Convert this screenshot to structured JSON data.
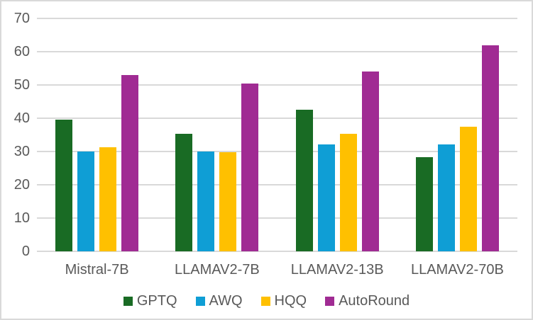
{
  "chart_data": {
    "type": "bar",
    "title": "",
    "xlabel": "",
    "ylabel": "",
    "categories": [
      "Mistral-7B",
      "LLAMAV2-7B",
      "LLAMAV2-13B",
      "LLAMAV2-70B"
    ],
    "series": [
      {
        "name": "GPTQ",
        "color": "#196B24",
        "values": [
          39.5,
          35.3,
          42.5,
          28.4
        ]
      },
      {
        "name": "AWQ",
        "color": "#0F9ED5",
        "values": [
          30.1,
          30.0,
          32.1,
          32.2
        ]
      },
      {
        "name": "HQQ",
        "color": "#FFC000",
        "values": [
          31.2,
          29.8,
          35.3,
          37.5
        ]
      },
      {
        "name": "AutoRound",
        "color": "#A02B93",
        "values": [
          52.9,
          50.4,
          54.1,
          61.9
        ]
      }
    ],
    "ylim": [
      0,
      70
    ],
    "ytick_step": 10,
    "ytick_labels": [
      "0",
      "10",
      "20",
      "30",
      "40",
      "50",
      "60",
      "70"
    ],
    "grid": true,
    "gridline_color": "#D9D9D9",
    "axis_text_color": "#595959",
    "frame_border_color": "#D9D9D9",
    "legend_position": "bottom",
    "legend_entries": [
      "GPTQ",
      "AWQ",
      "HQQ",
      "AutoRound"
    ]
  }
}
